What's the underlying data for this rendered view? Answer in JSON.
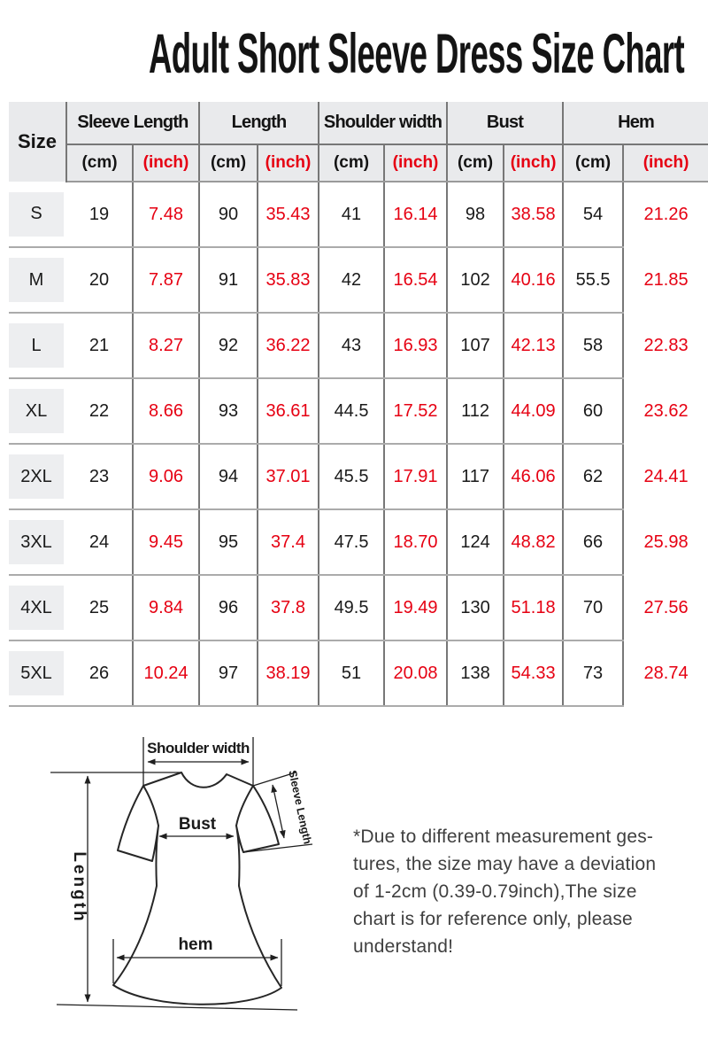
{
  "title": "Adult Short Sleeve Dress Size Chart",
  "table": {
    "size_header": "Size",
    "cm_label": "(cm)",
    "inch_label": "(inch)",
    "groups": [
      {
        "label": "Sleeve Length"
      },
      {
        "label": "Length"
      },
      {
        "label": "Shoulder width"
      },
      {
        "label": "Bust"
      },
      {
        "label": "Hem"
      }
    ],
    "rows": [
      {
        "size": "S",
        "values": [
          "19",
          "7.48",
          "90",
          "35.43",
          "41",
          "16.14",
          "98",
          "38.58",
          "54",
          "21.26"
        ]
      },
      {
        "size": "M",
        "values": [
          "20",
          "7.87",
          "91",
          "35.83",
          "42",
          "16.54",
          "102",
          "40.16",
          "55.5",
          "21.85"
        ]
      },
      {
        "size": "L",
        "values": [
          "21",
          "8.27",
          "92",
          "36.22",
          "43",
          "16.93",
          "107",
          "42.13",
          "58",
          "22.83"
        ]
      },
      {
        "size": "XL",
        "values": [
          "22",
          "8.66",
          "93",
          "36.61",
          "44.5",
          "17.52",
          "112",
          "44.09",
          "60",
          "23.62"
        ]
      },
      {
        "size": "2XL",
        "values": [
          "23",
          "9.06",
          "94",
          "37.01",
          "45.5",
          "17.91",
          "117",
          "46.06",
          "62",
          "24.41"
        ]
      },
      {
        "size": "3XL",
        "values": [
          "24",
          "9.45",
          "95",
          "37.4",
          "47.5",
          "18.70",
          "124",
          "48.82",
          "66",
          "25.98"
        ]
      },
      {
        "size": "4XL",
        "values": [
          "25",
          "9.84",
          "96",
          "37.8",
          "49.5",
          "19.49",
          "130",
          "51.18",
          "70",
          "27.56"
        ]
      },
      {
        "size": "5XL",
        "values": [
          "26",
          "10.24",
          "97",
          "38.19",
          "51",
          "20.08",
          "138",
          "54.33",
          "73",
          "28.74"
        ]
      }
    ]
  },
  "diagram": {
    "labels": {
      "shoulder_width": "Shoulder width",
      "sleeve_length": "Sleeve Length",
      "bust": "Bust",
      "length": "Length",
      "hem": "hem"
    }
  },
  "note": {
    "lines": [
      "*Due to different measurement ges-",
      "tures, the size may have a deviation",
      "of 1-2cm (0.39-0.79inch),The size",
      "chart is for reference only, please",
      "understand!"
    ]
  },
  "colors": {
    "accent_red": "#e60012",
    "header_bg": "#e9eaec",
    "size_cell_bg": "#edeef0",
    "line_dark": "#777777",
    "line_mid": "#9a9a9a",
    "line_light": "#ababab"
  }
}
